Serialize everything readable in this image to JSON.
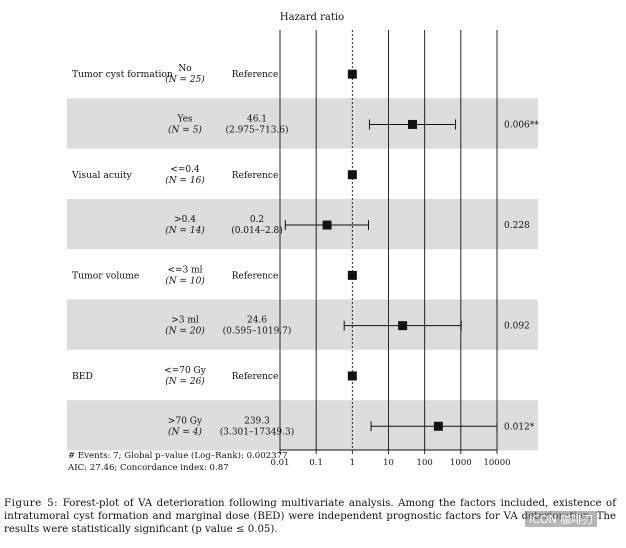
{
  "chart_data": {
    "type": "forest",
    "title": "Hazard ratio",
    "x_scale": "log",
    "x_ticks": [
      "0.01",
      "0.1",
      "1",
      "10",
      "100",
      "1000",
      "10000"
    ],
    "x_tick_values": [
      0.01,
      0.1,
      1,
      10,
      100,
      1000,
      10000
    ],
    "xlim": [
      0.01,
      10000
    ],
    "reference_line": 1,
    "shaded_rows": [
      1,
      3,
      5,
      7
    ],
    "rows": [
      {
        "variable": "Tumor cyst formation",
        "level": "No",
        "n": "(N = 25)",
        "hr_text": "Reference",
        "ci_text": "",
        "hr": 1,
        "lo": null,
        "hi": null,
        "p": ""
      },
      {
        "variable": "",
        "level": "Yes",
        "n": "(N = 5)",
        "hr_text": "46.1",
        "ci_text": "(2.975–713.6)",
        "hr": 46.1,
        "lo": 2.975,
        "hi": 713.6,
        "p": "0.006**"
      },
      {
        "variable": "Visual acuity",
        "level": "<=0.4",
        "n": "(N = 16)",
        "hr_text": "Reference",
        "ci_text": "",
        "hr": 1,
        "lo": null,
        "hi": null,
        "p": ""
      },
      {
        "variable": "",
        "level": ">0.4",
        "n": "(N = 14)",
        "hr_text": "0.2",
        "ci_text": "(0.014–2.8)",
        "hr": 0.2,
        "lo": 0.014,
        "hi": 2.8,
        "p": "0.228"
      },
      {
        "variable": "Tumor volume",
        "level": "<=3 ml",
        "n": "(N = 10)",
        "hr_text": "Reference",
        "ci_text": "",
        "hr": 1,
        "lo": null,
        "hi": null,
        "p": ""
      },
      {
        "variable": "",
        "level": ">3 ml",
        "n": "(N = 20)",
        "hr_text": "24.6",
        "ci_text": "(0.595–1019.7)",
        "hr": 24.6,
        "lo": 0.595,
        "hi": 1019.7,
        "p": "0.092"
      },
      {
        "variable": "BED",
        "level": "<=70 Gy",
        "n": "(N = 26)",
        "hr_text": "Reference",
        "ci_text": "",
        "hr": 1,
        "lo": null,
        "hi": null,
        "p": ""
      },
      {
        "variable": "",
        "level": ">70 Gy",
        "n": "(N = 4)",
        "hr_text": "239.3",
        "ci_text": "(3.301–17349.3)",
        "hr": 239.3,
        "lo": 3.301,
        "hi": 17349.3,
        "p": "0.012*"
      }
    ],
    "footnote_lines": [
      "# Events: 7; Global p–value (Log–Rank): 0.002377",
      "AIC: 27.46; Concordance index: 0.87"
    ]
  },
  "caption": {
    "label": "Figure 5:",
    "text": "Forest-plot of VA deterioration following multivariate analysis. Among the factors included, existence of intratumoral cyst formation and marginal dose (BED) were independent prognostic factors for VA deterioration. The results were statistically significant (p value ≤ 0.05)."
  },
  "watermark": "ICON 咖啡刃",
  "colors": {
    "shade": "#dcdcdc",
    "ink": "#111111"
  }
}
